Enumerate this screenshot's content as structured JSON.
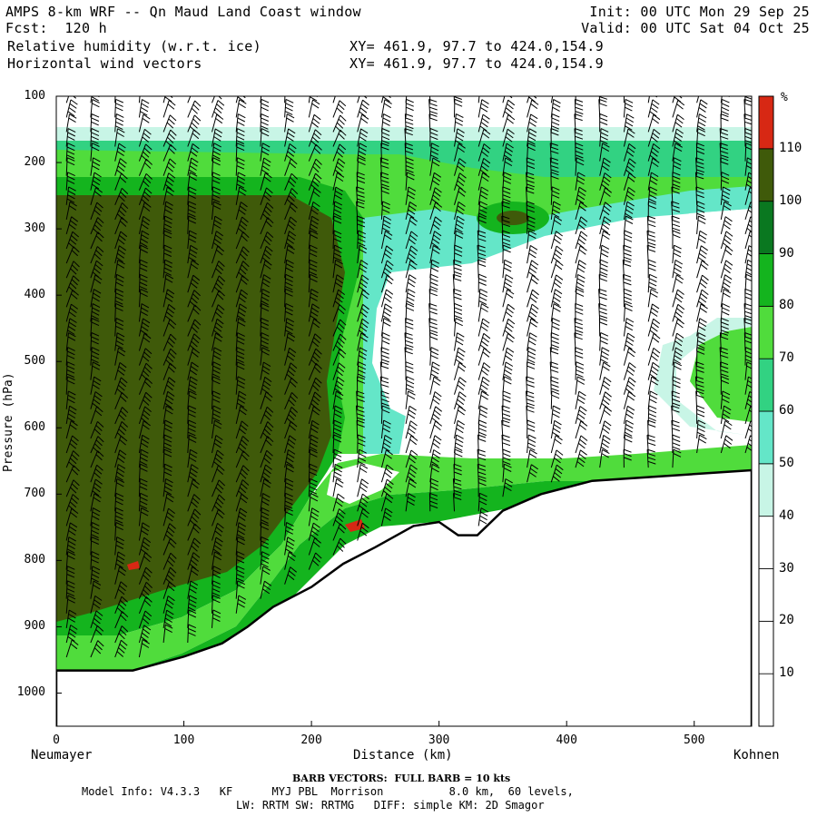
{
  "header": {
    "title": "AMPS 8-km WRF -- Qn Maud Land Coast window",
    "fcst": "Fcst:  120 h",
    "field1": "Relative humidity (w.r.t. ice)",
    "field2": "Horizontal wind vectors",
    "init": "Init: 00 UTC Mon 29 Sep 25",
    "valid": "Valid: 00 UTC Sat 04 Oct 25",
    "xy1": "XY= 461.9, 97.7 to 424.0,154.9",
    "xy2": "XY= 461.9, 97.7 to 424.0,154.9"
  },
  "chart_data": {
    "type": "contour cross-section",
    "ylabel": "Pressure (hPa)",
    "xlabel": "Distance (km)",
    "x_left_label": "Neumayer",
    "x_right_label": "Kohnen",
    "y_ticks": [
      "100",
      "200",
      "300",
      "400",
      "500",
      "600",
      "700",
      "800",
      "900",
      "1000"
    ],
    "x_ticks": [
      "0",
      "100",
      "200",
      "300",
      "400",
      "500"
    ],
    "ylim": [
      100,
      1050
    ],
    "xlim": [
      0,
      545
    ],
    "colorbar_unit": "%",
    "colorbar_labels": [
      "10",
      "20",
      "30",
      "40",
      "50",
      "60",
      "70",
      "80",
      "90",
      "100",
      "110"
    ],
    "colorbar_colors": [
      "#ffffff",
      "#ffffff",
      "#ffffff",
      "#c8f5e6",
      "#64e6c8",
      "#32d282",
      "#50dc3c",
      "#14b41e",
      "#0a7820",
      "#3f5a0a",
      "#d72814"
    ],
    "terrain": [
      {
        "x": 0,
        "p": 966
      },
      {
        "x": 60,
        "p": 966
      },
      {
        "x": 100,
        "p": 945
      },
      {
        "x": 130,
        "p": 925
      },
      {
        "x": 150,
        "p": 900
      },
      {
        "x": 170,
        "p": 870
      },
      {
        "x": 200,
        "p": 840
      },
      {
        "x": 225,
        "p": 805
      },
      {
        "x": 250,
        "p": 780
      },
      {
        "x": 280,
        "p": 748
      },
      {
        "x": 300,
        "p": 742
      },
      {
        "x": 315,
        "p": 762
      },
      {
        "x": 330,
        "p": 762
      },
      {
        "x": 350,
        "p": 725
      },
      {
        "x": 380,
        "p": 700
      },
      {
        "x": 420,
        "p": 680
      },
      {
        "x": 545,
        "p": 664
      }
    ],
    "footer": {
      "barb": "BARB VECTORS:  FULL BARB = 10 kts",
      "model_info": "Model Info: V4.3.3   KF      MYJ PBL  Morrison          8.0 km,  60 levels,",
      "model_info2": "LW: RRTM SW: RRTMG   DIFF: simple KM: 2D Smagor"
    }
  }
}
